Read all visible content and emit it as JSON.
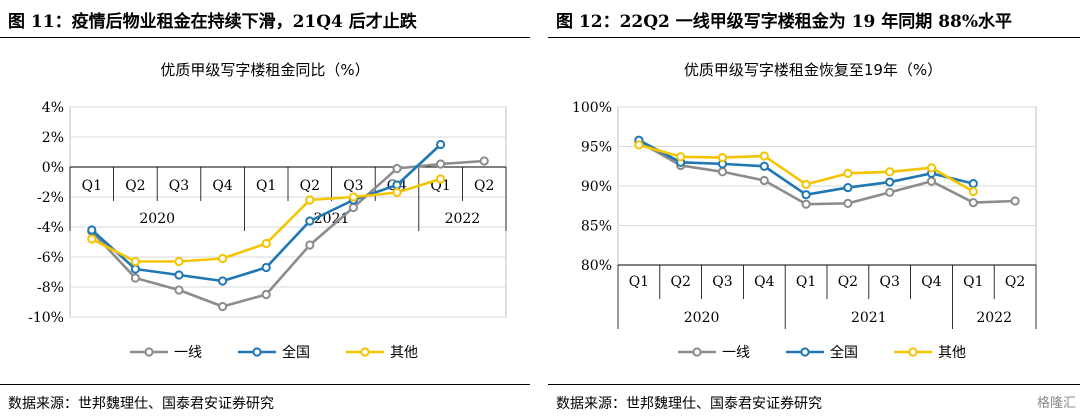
{
  "figures": [
    {
      "title": "图 11：疫情后物业租金在持续下滑，21Q4 后才止跌",
      "source": "数据来源：世邦魏理仕、国泰君安证券研究"
    },
    {
      "title": "图 12：22Q2 一线甲级写字楼租金为 19 年同期 88%水平",
      "source": "数据来源：世邦魏理仕、国泰君安证券研究"
    }
  ],
  "watermark": "格隆汇",
  "chart_data": [
    {
      "type": "line",
      "title": "优质甲级写字楼租金同比（%）",
      "quarters": [
        "Q1",
        "Q2",
        "Q3",
        "Q4",
        "Q1",
        "Q2",
        "Q3",
        "Q4",
        "Q1",
        "Q2"
      ],
      "years": [
        {
          "label": "2020",
          "quarters": 4
        },
        {
          "label": "2021",
          "quarters": 4
        },
        {
          "label": "2022",
          "quarters": 2
        }
      ],
      "y_ticks": [
        "4%",
        "2%",
        "0%",
        "-2%",
        "-4%",
        "-6%",
        "-8%",
        "-10%"
      ],
      "ylim": [
        -10,
        4
      ],
      "x_axis_at": 0,
      "grid": true,
      "legend_position": "bottom",
      "series": [
        {
          "name": "一线",
          "color": "#8c8c8c",
          "values": [
            -4.3,
            -7.4,
            -8.2,
            -9.3,
            -8.5,
            -5.2,
            -2.7,
            -0.1,
            0.2,
            0.4
          ]
        },
        {
          "name": "全国",
          "color": "#1f77b4",
          "values": [
            -4.2,
            -6.8,
            -7.2,
            -7.6,
            -6.7,
            -3.6,
            -2.2,
            -1.2,
            1.5,
            null
          ]
        },
        {
          "name": "其他",
          "color": "#f5c400",
          "values": [
            -4.8,
            -6.3,
            -6.3,
            -6.1,
            -5.1,
            -2.2,
            -2.0,
            -1.7,
            -0.8,
            null
          ]
        }
      ]
    },
    {
      "type": "line",
      "title": "优质甲级写字楼租金恢复至19年（%）",
      "quarters": [
        "Q1",
        "Q2",
        "Q3",
        "Q4",
        "Q1",
        "Q2",
        "Q3",
        "Q4",
        "Q1",
        "Q2"
      ],
      "years": [
        {
          "label": "2020",
          "quarters": 4
        },
        {
          "label": "2021",
          "quarters": 4
        },
        {
          "label": "2022",
          "quarters": 2
        }
      ],
      "y_ticks": [
        "100%",
        "95%",
        "90%",
        "85%",
        "80%"
      ],
      "ylim": [
        80,
        100
      ],
      "x_axis_at": 80,
      "grid": true,
      "legend_position": "bottom",
      "series": [
        {
          "name": "一线",
          "color": "#8c8c8c",
          "values": [
            95.6,
            92.6,
            91.8,
            90.7,
            87.7,
            87.8,
            89.2,
            90.6,
            87.9,
            88.1
          ]
        },
        {
          "name": "全国",
          "color": "#1f77b4",
          "values": [
            95.8,
            93.0,
            92.8,
            92.5,
            88.9,
            89.8,
            90.5,
            91.6,
            90.3,
            null
          ]
        },
        {
          "name": "其他",
          "color": "#f5c400",
          "values": [
            95.2,
            93.7,
            93.6,
            93.8,
            90.2,
            91.6,
            91.8,
            92.3,
            89.3,
            null
          ]
        }
      ]
    }
  ]
}
